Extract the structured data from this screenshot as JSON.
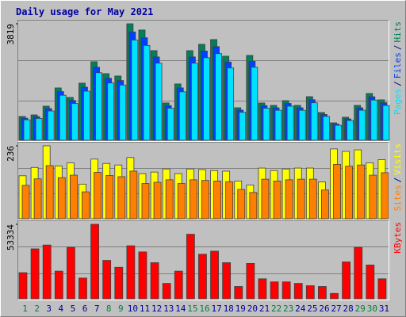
{
  "chart_data": {
    "type": "bar",
    "title": "Daily usage for May 2021",
    "categories": [
      "1",
      "2",
      "3",
      "4",
      "5",
      "6",
      "7",
      "8",
      "9",
      "10",
      "11",
      "12",
      "13",
      "14",
      "15",
      "16",
      "17",
      "18",
      "19",
      "20",
      "21",
      "22",
      "23",
      "24",
      "25",
      "26",
      "27",
      "28",
      "29",
      "30",
      "31"
    ],
    "category_colors": [
      "#008040",
      "#008040",
      "#0000a0",
      "#0000a0",
      "#0000a0",
      "#0000a0",
      "#0000a0",
      "#008040",
      "#008040",
      "#0000a0",
      "#0000a0",
      "#0000a0",
      "#0000a0",
      "#0000a0",
      "#008040",
      "#008040",
      "#0000a0",
      "#0000a0",
      "#0000a0",
      "#0000a0",
      "#0000a0",
      "#008040",
      "#008040",
      "#0000a0",
      "#0000a0",
      "#0000a0",
      "#0000a0",
      "#0000a0",
      "#008040",
      "#008040",
      "#0000a0"
    ],
    "legend_separator": "/",
    "panels": [
      {
        "ylim": [
          0,
          3819
        ],
        "yticks": [
          3819
        ],
        "series": [
          {
            "name": "Hits",
            "color": "#00805c",
            "values": [
              780,
              832,
              1118,
              1716,
              1404,
              1872,
              2574,
              2184,
              2106,
              3819,
              3614,
              2938,
              1222,
              1846,
              2938,
              3146,
              3302,
              2756,
              1066,
              2782,
              1222,
              1144,
              1300,
              1144,
              1430,
              910,
              572,
              754,
              1144,
              1534,
              1326
            ]
          },
          {
            "name": "Files",
            "color": "#0040ff",
            "values": [
              725,
              774,
              1040,
              1596,
              1306,
              1741,
              2394,
              2031,
              1959,
              3552,
              3361,
              2732,
              1136,
              1717,
              2732,
              2926,
              3071,
              2563,
              991,
              2587,
              1136,
              1064,
              1209,
              1064,
              1330,
              846,
              532,
              701,
              1064,
              1427,
              1233
            ]
          },
          {
            "name": "Pages",
            "color": "#00e0ff",
            "values": [
              671,
              716,
              961,
              1476,
              1207,
              1610,
              2214,
              1878,
              1811,
              3284,
              3108,
              2527,
              1051,
              1588,
              2527,
              2706,
              2840,
              2370,
              917,
              2393,
              1051,
              984,
              1118,
              984,
              1230,
              783,
              492,
              648,
              984,
              1319,
              1140
            ]
          }
        ]
      },
      {
        "ylim": [
          0,
          236
        ],
        "yticks": [
          236
        ],
        "series": [
          {
            "name": "Visits",
            "color": "#ffff00",
            "values": [
              139,
              166,
              236,
              171,
              181,
              112,
              193,
              179,
              174,
              198,
              146,
              151,
              161,
              146,
              161,
              159,
              156,
              154,
              122,
              109,
              164,
              156,
              161,
              164,
              164,
              119,
              226,
              218,
              223,
              181,
              191
            ]
          },
          {
            "name": "Sites",
            "color": "#ff8000",
            "values": [
              108,
              129,
              172,
              133,
              141,
              87,
              150,
              140,
              136,
              154,
              114,
              118,
              126,
              114,
              126,
              124,
              122,
              120,
              95,
              85,
              128,
              122,
              126,
              128,
              128,
              93,
              176,
              170,
              174,
              141,
              149
            ]
          }
        ]
      },
      {
        "ylim": [
          0,
          53334
        ],
        "yticks": [
          53334
        ],
        "series": [
          {
            "name": "KBytes",
            "color": "#ff0000",
            "values": [
              18700,
              35750,
              38500,
              19800,
              36850,
              14850,
              53334,
              27500,
              22550,
              37950,
              33550,
              25850,
              11000,
              19800,
              46200,
              31900,
              34100,
              25850,
              8800,
              25300,
              14300,
              12100,
              12100,
              11000,
              9350,
              8800,
              3850,
              26400,
              36850,
              24200,
              14300
            ]
          }
        ]
      }
    ]
  }
}
